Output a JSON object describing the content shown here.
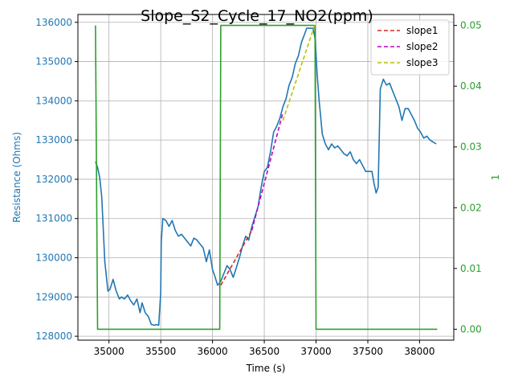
{
  "chart_data": {
    "type": "line",
    "title": "Slope_S2_Cycle_17_NO2(ppm)",
    "xlabel": "Time (s)",
    "ylabel_left": "Resistance (Ohms)",
    "ylabel_right": "1",
    "xlim": [
      34700,
      38330
    ],
    "ylim_left": [
      127900,
      136200
    ],
    "ylim_right": [
      -0.0018,
      0.0518
    ],
    "x_ticks": [
      35000,
      35500,
      36000,
      36500,
      37000,
      37500,
      38000
    ],
    "y_left_ticks": [
      128000,
      129000,
      130000,
      131000,
      132000,
      133000,
      134000,
      135000,
      136000
    ],
    "y_right_ticks": [
      0.0,
      0.01,
      0.02,
      0.03,
      0.04,
      0.05
    ],
    "y_right_tick_labels": [
      "0.00",
      "0.01",
      "0.02",
      "0.03",
      "0.04",
      "0.05"
    ],
    "grid": true,
    "legend_position": "top-right",
    "colors": {
      "resistance": "#1f77b4",
      "concentration": "#2ca02c",
      "slope1": "#d62728",
      "slope2": "#bf00bf",
      "slope3": "#bfbf00",
      "left_axis_label": "#1f77b4",
      "right_axis_label": "#2ca02c"
    },
    "series": [
      {
        "key": "resistance",
        "axis": "left",
        "style": "solid",
        "x": [
          34870,
          34890,
          34910,
          34930,
          34960,
          34990,
          35010,
          35040,
          35070,
          35100,
          35120,
          35150,
          35180,
          35210,
          35240,
          35270,
          35300,
          35320,
          35350,
          35380,
          35410,
          35440,
          35460,
          35480,
          35500,
          35505,
          35520,
          35550,
          35580,
          35610,
          35640,
          35670,
          35700,
          35730,
          35760,
          35790,
          35820,
          35850,
          35880,
          35910,
          35940,
          35970,
          36000,
          36020,
          36050,
          36080,
          36110,
          36140,
          36170,
          36200,
          36230,
          36260,
          36290,
          36320,
          36350,
          36380,
          36410,
          36440,
          36470,
          36500,
          36530,
          36560,
          36590,
          36620,
          36650,
          36680,
          36710,
          36740,
          36770,
          36800,
          36830,
          36860,
          36890,
          36910,
          36930,
          36950,
          36970,
          36990,
          37000,
          37010,
          37030,
          37060,
          37090,
          37120,
          37150,
          37180,
          37210,
          37240,
          37270,
          37300,
          37330,
          37360,
          37390,
          37420,
          37450,
          37480,
          37510,
          37540,
          37560,
          37580,
          37600,
          37620,
          37650,
          37680,
          37710,
          37740,
          37770,
          37800,
          37830,
          37860,
          37890,
          37920,
          37950,
          37980,
          38010,
          38040,
          38070,
          38100,
          38130,
          38160
        ],
        "y": [
          132450,
          132300,
          132050,
          131550,
          129900,
          129150,
          129200,
          129450,
          129150,
          128950,
          129000,
          128950,
          129050,
          128900,
          128800,
          128950,
          128600,
          128850,
          128600,
          128500,
          128300,
          128280,
          128300,
          128280,
          129100,
          130400,
          131000,
          130950,
          130800,
          130950,
          130700,
          130550,
          130600,
          130500,
          130400,
          130300,
          130500,
          130450,
          130350,
          130250,
          129900,
          130200,
          129700,
          129550,
          129300,
          129400,
          129600,
          129800,
          129700,
          129500,
          129750,
          130000,
          130300,
          130550,
          130450,
          130800,
          131050,
          131300,
          131800,
          132200,
          132300,
          132700,
          133200,
          133350,
          133550,
          133850,
          134050,
          134400,
          134600,
          134950,
          135150,
          135500,
          135700,
          135850,
          135850,
          135850,
          135850,
          135600,
          135200,
          134700,
          134000,
          133150,
          132900,
          132750,
          132900,
          132800,
          132850,
          132750,
          132650,
          132600,
          132700,
          132500,
          132400,
          132500,
          132350,
          132200,
          132200,
          132200,
          131900,
          131650,
          131800,
          134300,
          134550,
          134400,
          134450,
          134250,
          134050,
          133850,
          133500,
          133800,
          133800,
          133650,
          133500,
          133300,
          133200,
          133050,
          133100,
          133000,
          132950,
          132900
        ]
      },
      {
        "key": "concentration",
        "axis": "right",
        "style": "solid",
        "x": [
          34870,
          34890,
          36070,
          36080,
          36990,
          37000,
          38170
        ],
        "y": [
          0.05,
          0.0,
          0.0,
          0.05,
          0.05,
          0.0,
          0.0
        ]
      },
      {
        "key": "slope1",
        "name": "slope1",
        "axis": "left",
        "style": "dashed",
        "x": [
          36080,
          36380
        ],
        "y": [
          129300,
          130700
        ]
      },
      {
        "key": "slope2",
        "name": "slope2",
        "axis": "left",
        "style": "dashed",
        "x": [
          36380,
          36680
        ],
        "y": [
          130700,
          133700
        ]
      },
      {
        "key": "slope3",
        "name": "slope3",
        "axis": "left",
        "style": "dashed",
        "x": [
          36680,
          36990
        ],
        "y": [
          133500,
          135950
        ]
      }
    ],
    "legend": [
      "slope1",
      "slope2",
      "slope3"
    ]
  }
}
